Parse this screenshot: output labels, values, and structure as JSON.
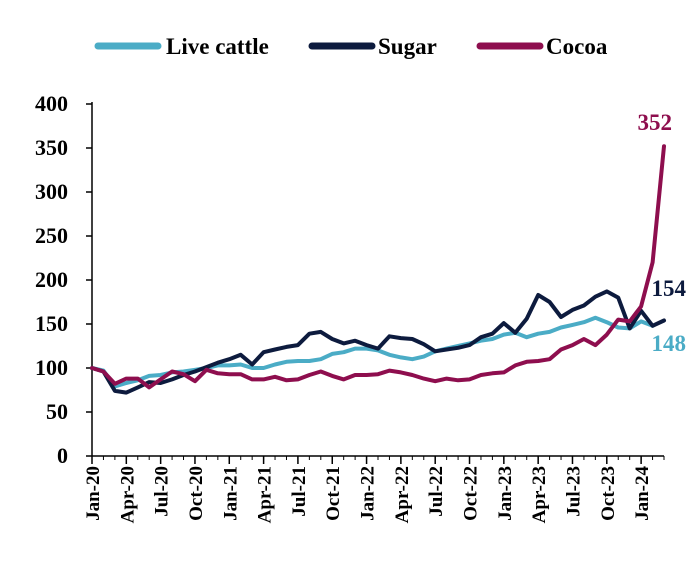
{
  "chart_data": {
    "type": "line",
    "title": "",
    "xlabel": "",
    "ylabel": "",
    "ylim": [
      0,
      400
    ],
    "yticks": [
      0,
      50,
      100,
      150,
      200,
      250,
      300,
      350,
      400
    ],
    "x_tick_labels": [
      "Jan-20",
      "Apr-20",
      "Jul-20",
      "Oct-20",
      "Jan-21",
      "Apr-21",
      "Jul-21",
      "Oct-21",
      "Jan-22",
      "Apr-22",
      "Jul-22",
      "Oct-22",
      "Jan-23",
      "Apr-23",
      "Jul-23",
      "Oct-23",
      "Jan-24"
    ],
    "x_tick_index": [
      0,
      3,
      6,
      9,
      12,
      15,
      18,
      21,
      24,
      27,
      30,
      33,
      36,
      39,
      42,
      45,
      48
    ],
    "grid": false,
    "legend_position": "top",
    "series": [
      {
        "name": "Live cattle",
        "color": "#4BACC6",
        "end_label": "148",
        "values": [
          100,
          97,
          79,
          83,
          86,
          91,
          92,
          95,
          96,
          98,
          100,
          103,
          103,
          104,
          100,
          100,
          104,
          107,
          108,
          108,
          110,
          116,
          118,
          122,
          122,
          120,
          115,
          112,
          110,
          113,
          119,
          122,
          125,
          128,
          131,
          133,
          138,
          140,
          135,
          139,
          141,
          146,
          149,
          152,
          157,
          152,
          146,
          145,
          153,
          148
        ]
      },
      {
        "name": "Sugar",
        "color": "#0D1B3E",
        "end_label": "154",
        "values": [
          100,
          96,
          74,
          72,
          78,
          84,
          83,
          87,
          92,
          96,
          101,
          106,
          110,
          115,
          104,
          118,
          121,
          124,
          126,
          139,
          141,
          133,
          128,
          131,
          126,
          122,
          136,
          134,
          133,
          127,
          119,
          121,
          123,
          126,
          135,
          139,
          151,
          140,
          156,
          183,
          175,
          158,
          166,
          171,
          181,
          187,
          180,
          145,
          165,
          148,
          154
        ]
      },
      {
        "name": "Cocoa",
        "color": "#8E0E4E",
        "end_label": "352",
        "values": [
          100,
          96,
          82,
          88,
          88,
          78,
          87,
          96,
          93,
          85,
          98,
          94,
          93,
          93,
          87,
          87,
          90,
          86,
          87,
          92,
          96,
          91,
          87,
          92,
          92,
          93,
          97,
          95,
          92,
          88,
          85,
          88,
          86,
          87,
          92,
          94,
          95,
          103,
          107,
          108,
          110,
          121,
          126,
          133,
          126,
          138,
          155,
          153,
          170,
          220,
          352
        ]
      }
    ]
  }
}
